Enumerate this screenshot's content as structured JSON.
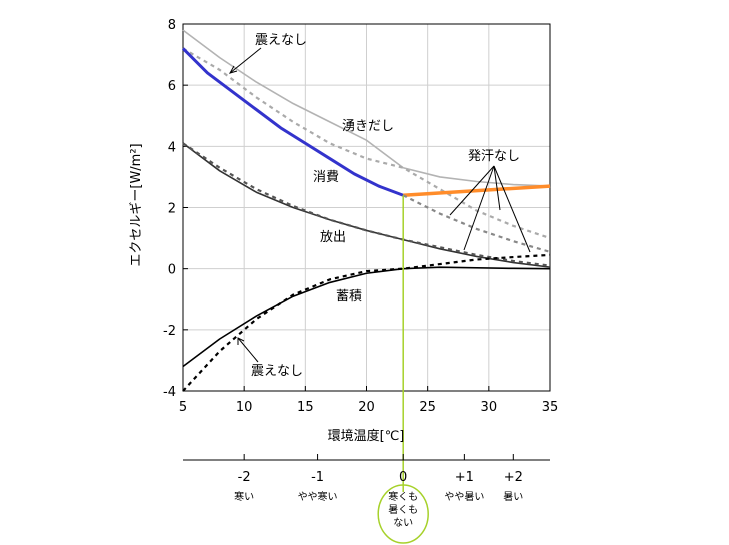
{
  "chart_data": {
    "type": "line",
    "xlabel": "環境温度[℃]",
    "ylabel": "エクセルギー[W/m²]",
    "xlim": [
      5,
      35
    ],
    "ylim": [
      -4,
      8
    ],
    "xticks": [
      5,
      10,
      15,
      20,
      25,
      30,
      35
    ],
    "yticks": [
      -4,
      -2,
      0,
      2,
      4,
      6,
      8
    ],
    "grid": true,
    "series": [
      {
        "name": "湧きだし",
        "style": "solid",
        "color": "#b3b3b3",
        "x": [
          5,
          8,
          11,
          14,
          17,
          20,
          23,
          26,
          29,
          32,
          35
        ],
        "y": [
          7.8,
          6.9,
          6.1,
          5.4,
          4.8,
          4.2,
          3.3,
          3.0,
          2.85,
          2.75,
          2.7
        ]
      },
      {
        "name": "震えなし",
        "style": "dashed",
        "color": "#aaaaaa",
        "x": [
          5,
          8,
          11,
          14,
          17,
          20,
          23,
          26,
          29,
          32,
          35
        ],
        "y": [
          7.2,
          6.5,
          5.6,
          4.8,
          4.1,
          3.6,
          3.3,
          2.6,
          1.9,
          1.4,
          1.0
        ]
      },
      {
        "name": "消費",
        "style": "solid",
        "color": "#3333cc",
        "x": [
          5,
          7,
          9,
          11,
          13,
          15,
          17,
          19,
          21,
          23
        ],
        "y": [
          7.2,
          6.4,
          5.8,
          5.2,
          4.6,
          4.1,
          3.6,
          3.1,
          2.7,
          2.4
        ]
      },
      {
        "name": "発汗なし",
        "style": "solid",
        "color": "#ff8c2a",
        "x": [
          23,
          35
        ],
        "y": [
          2.4,
          2.7
        ]
      },
      {
        "name": "消費-発汗なし",
        "style": "dashed",
        "color": "#888888",
        "x": [
          23,
          26,
          29,
          32,
          35
        ],
        "y": [
          2.4,
          1.8,
          1.3,
          0.9,
          0.55
        ]
      },
      {
        "name": "放出",
        "style": "solid",
        "color": "#333333",
        "x": [
          5,
          8,
          11,
          14,
          17,
          20,
          23,
          26,
          29,
          32,
          35
        ],
        "y": [
          4.1,
          3.2,
          2.5,
          2.0,
          1.6,
          1.25,
          0.95,
          0.65,
          0.4,
          0.2,
          0.05
        ]
      },
      {
        "name": "放出-破線",
        "style": "dashed",
        "color": "#555555",
        "x": [
          5,
          8,
          11,
          14,
          17,
          20,
          23,
          26,
          29,
          32,
          35
        ],
        "y": [
          4.1,
          3.3,
          2.6,
          2.05,
          1.6,
          1.25,
          0.95,
          0.7,
          0.45,
          0.25,
          0.1
        ]
      },
      {
        "name": "蓄積",
        "style": "solid",
        "color": "#000000",
        "x": [
          5,
          8,
          11,
          14,
          17,
          20,
          23,
          26,
          29,
          32,
          35
        ],
        "y": [
          -3.2,
          -2.3,
          -1.55,
          -0.9,
          -0.45,
          -0.15,
          0.0,
          0.05,
          0.03,
          0.01,
          0.0
        ]
      },
      {
        "name": "震えなし-蓄積",
        "style": "dashed",
        "color": "#000000",
        "x": [
          5,
          8,
          11,
          14,
          17,
          20,
          23,
          26,
          29,
          32,
          35
        ],
        "y": [
          -4.0,
          -2.7,
          -1.65,
          -0.85,
          -0.35,
          -0.08,
          0.0,
          0.15,
          0.3,
          0.38,
          0.45
        ]
      }
    ],
    "annotations": [
      {
        "text": "震えなし"
      },
      {
        "text": "湧きだし"
      },
      {
        "text": "消費"
      },
      {
        "text": "発汗なし"
      },
      {
        "text": "放出"
      },
      {
        "text": "蓄積"
      },
      {
        "text": "震えなし"
      }
    ],
    "comfort_scale": {
      "ticks": [
        {
          "label": "-2",
          "desc": "寒い",
          "temp": 10
        },
        {
          "label": "-1",
          "desc": "やや寒い",
          "temp": 16
        },
        {
          "label": "0",
          "desc_lines": [
            "寒くも",
            "暑くも",
            "ない"
          ],
          "temp": 23
        },
        {
          "label": "+1",
          "desc": "やや暑い",
          "temp": 28
        },
        {
          "label": "+2",
          "desc": "暑い",
          "temp": 32
        }
      ]
    },
    "marker": {
      "x": 23,
      "color": "#a6d12a"
    }
  }
}
